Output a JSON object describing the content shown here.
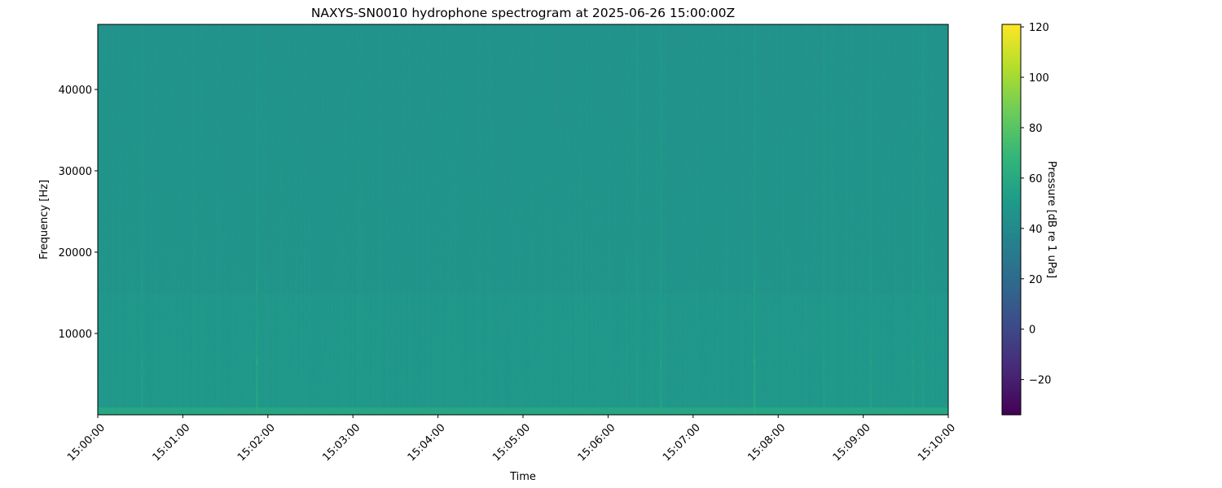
{
  "chart_data": {
    "type": "heatmap",
    "title": "NAXYS-SN0010 hydrophone spectrogram at 2025-06-26 15:00:00Z",
    "xlabel": "Time",
    "ylabel": "Frequency [Hz]",
    "x_ticks": [
      "15:00:00",
      "15:01:00",
      "15:02:00",
      "15:03:00",
      "15:04:00",
      "15:05:00",
      "15:06:00",
      "15:07:00",
      "15:08:00",
      "15:09:00",
      "15:10:00"
    ],
    "x_range_minutes": [
      0,
      10
    ],
    "y_ticks": [
      10000,
      20000,
      30000,
      40000
    ],
    "ylim": [
      0,
      48000
    ],
    "colormap": "viridis",
    "colorbar": {
      "label": "Pressure [dB re 1 uPa]",
      "ticks": [
        -20,
        0,
        20,
        40,
        60,
        80,
        100,
        120
      ],
      "range": [
        -34,
        121
      ]
    },
    "background_level_db": 47,
    "low_frequency_band_db": 58,
    "transients": [
      {
        "time": "15:00:31",
        "level_db": 58
      },
      {
        "time": "15:01:52",
        "level_db": 66
      },
      {
        "time": "15:06:20",
        "level_db": 56
      },
      {
        "time": "15:06:37",
        "level_db": 62
      },
      {
        "time": "15:07:43",
        "level_db": 70
      },
      {
        "time": "15:08:32",
        "level_db": 58
      },
      {
        "time": "15:09:05",
        "level_db": 62
      },
      {
        "time": "15:09:35",
        "level_db": 60
      },
      {
        "time": "15:09:42",
        "level_db": 58
      }
    ]
  }
}
